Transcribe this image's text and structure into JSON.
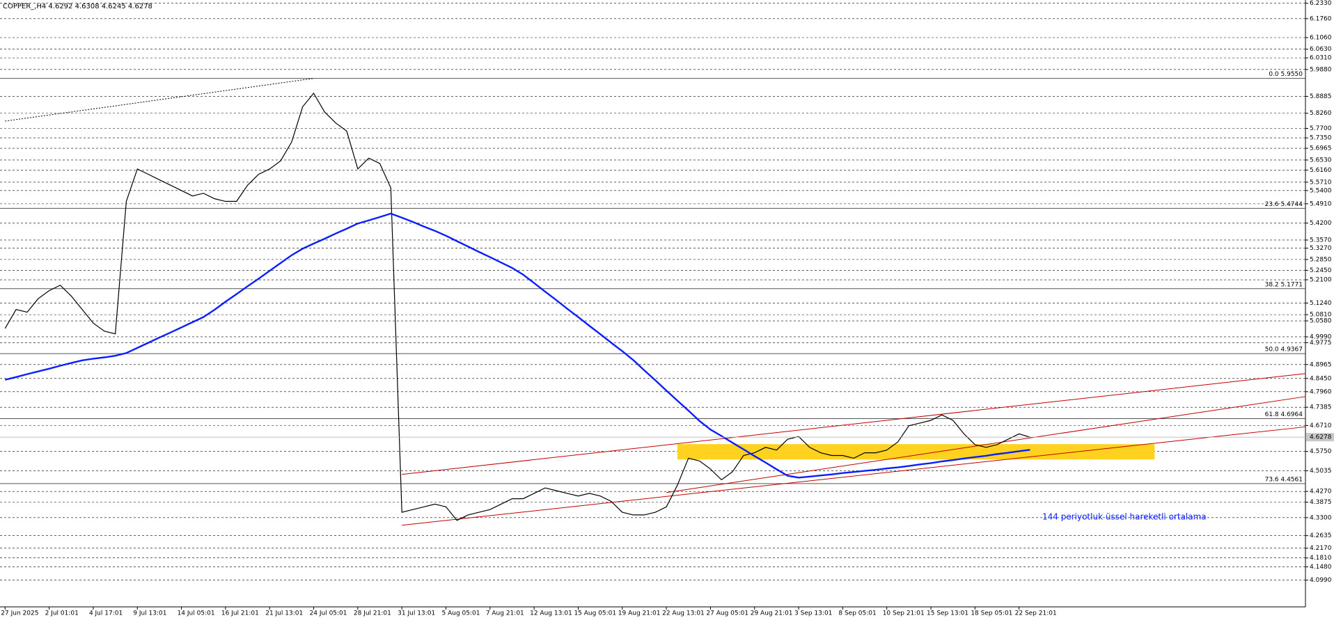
{
  "chart_data": {
    "type": "line",
    "title": "COPPER_,H4  4.6292 4.6308 4.6245 4.6278",
    "categories": [
      "27 Jun 2025",
      null,
      null,
      null,
      "2 Jul 01:01",
      null,
      null,
      null,
      "4 Jul 17:01",
      null,
      null,
      null,
      "9 Jul 13:01",
      null,
      null,
      null,
      "14 Jul 05:01",
      null,
      null,
      null,
      "16 Jul 21:01",
      null,
      null,
      null,
      "21 Jul 13:01",
      null,
      null,
      null,
      "24 Jul 05:01",
      null,
      null,
      null,
      "28 Jul 21:01",
      null,
      null,
      null,
      "31 Jul 13:01",
      null,
      null,
      null,
      "5 Aug 05:01",
      null,
      null,
      null,
      "7 Aug 21:01",
      null,
      null,
      null,
      "12 Aug 13:01",
      null,
      null,
      null,
      "15 Aug 05:01",
      null,
      null,
      null,
      "19 Aug 21:01",
      null,
      null,
      null,
      "22 Aug 13:01",
      null,
      null,
      null,
      "27 Aug 05:01",
      null,
      null,
      null,
      "29 Aug 21:01",
      null,
      null,
      null,
      "3 Sep 13:01",
      null,
      null,
      null,
      "8 Sep 05:01",
      null,
      null,
      null,
      "10 Sep 21:01",
      null,
      null,
      null,
      "15 Sep 13:01",
      null,
      null,
      null,
      "18 Sep 05:01",
      null,
      null,
      null,
      "22 Sep 21:01",
      null
    ],
    "series": [
      {
        "color": "#000000",
        "values": [
          5.03,
          5.1,
          5.09,
          5.14,
          5.17,
          5.19,
          5.15,
          5.1,
          5.05,
          5.02,
          5.01,
          5.5,
          5.62,
          5.6,
          5.58,
          5.56,
          5.54,
          5.52,
          5.53,
          5.51,
          5.5,
          5.5,
          5.56,
          5.6,
          5.62,
          5.65,
          5.72,
          5.85,
          5.9,
          5.83,
          5.79,
          5.76,
          5.62,
          5.66,
          5.64,
          5.55,
          4.35,
          4.36,
          4.37,
          4.38,
          4.37,
          4.32,
          4.34,
          4.35,
          4.36,
          4.38,
          4.4,
          4.4,
          4.42,
          4.44,
          4.43,
          4.42,
          4.41,
          4.42,
          4.41,
          4.39,
          4.35,
          4.34,
          4.34,
          4.35,
          4.37,
          4.45,
          4.55,
          4.54,
          4.51,
          4.47,
          4.5,
          4.56,
          4.57,
          4.59,
          4.58,
          4.62,
          4.63,
          4.59,
          4.57,
          4.56,
          4.56,
          4.55,
          4.57,
          4.57,
          4.58,
          4.61,
          4.67,
          4.68,
          4.69,
          4.71,
          4.69,
          4.64,
          4.6,
          4.59,
          4.6,
          4.62,
          4.64,
          4.6278
        ]
      },
      {
        "name": "144 periyotluk üssel hareketli ortalama",
        "color": "#0a1eff",
        "values": [
          4.84,
          4.85,
          4.861,
          4.871,
          4.881,
          4.892,
          4.902,
          4.912,
          4.918,
          4.923,
          4.929,
          4.939,
          4.958,
          4.977,
          4.996,
          5.015,
          5.034,
          5.053,
          5.072,
          5.099,
          5.129,
          5.157,
          5.186,
          5.214,
          5.243,
          5.272,
          5.301,
          5.325,
          5.344,
          5.362,
          5.381,
          5.399,
          5.418,
          5.43,
          5.442,
          5.455,
          5.44,
          5.424,
          5.407,
          5.391,
          5.373,
          5.353,
          5.333,
          5.313,
          5.294,
          5.274,
          5.254,
          5.229,
          5.198,
          5.166,
          5.135,
          5.103,
          5.072,
          5.04,
          5.009,
          4.977,
          4.946,
          4.913,
          4.875,
          4.838,
          4.8,
          4.763,
          4.726,
          4.688,
          4.656,
          4.632,
          4.607,
          4.583,
          4.558,
          4.534,
          4.509,
          4.485,
          4.478,
          4.482,
          4.486,
          4.49,
          4.495,
          4.499,
          4.503,
          4.507,
          4.512,
          4.516,
          4.521,
          4.527,
          4.532,
          4.538,
          4.543,
          4.549,
          4.554,
          4.559,
          4.565,
          4.57,
          4.576,
          4.581
        ]
      }
    ],
    "ylim": [
      4.0,
      6.245
    ],
    "yticks": [
      {
        "value": 6.233,
        "label": "6.2330"
      },
      {
        "value": 6.176,
        "label": "6.1760"
      },
      {
        "value": 6.106,
        "label": "6.1060"
      },
      {
        "value": 6.063,
        "label": "6.0630"
      },
      {
        "value": 6.031,
        "label": "6.0310"
      },
      {
        "value": 5.988,
        "label": "5.9880"
      },
      {
        "value": 5.8885,
        "label": "5.8885"
      },
      {
        "value": 5.826,
        "label": "5.8260"
      },
      {
        "value": 5.77,
        "label": "5.7700"
      },
      {
        "value": 5.735,
        "label": "5.7350"
      },
      {
        "value": 5.6965,
        "label": "5.6965"
      },
      {
        "value": 5.653,
        "label": "5.6530"
      },
      {
        "value": 5.616,
        "label": "5.6160"
      },
      {
        "value": 5.571,
        "label": "5.5710"
      },
      {
        "value": 5.54,
        "label": "5.5400"
      },
      {
        "value": 5.491,
        "label": "5.4910"
      },
      {
        "value": 5.42,
        "label": "5.4200"
      },
      {
        "value": 5.357,
        "label": "5.3570"
      },
      {
        "value": 5.327,
        "label": "5.3270"
      },
      {
        "value": 5.285,
        "label": "5.2850"
      },
      {
        "value": 5.245,
        "label": "5.2450"
      },
      {
        "value": 5.21,
        "label": "5.2100"
      },
      {
        "value": 5.124,
        "label": "5.1240"
      },
      {
        "value": 5.081,
        "label": "5.0810"
      },
      {
        "value": 5.058,
        "label": "5.0580"
      },
      {
        "value": 4.999,
        "label": "4.9990"
      },
      {
        "value": 4.9775,
        "label": "4.9775"
      },
      {
        "value": 4.8965,
        "label": "4.8965"
      },
      {
        "value": 4.845,
        "label": "4.8450"
      },
      {
        "value": 4.796,
        "label": "4.7960"
      },
      {
        "value": 4.7385,
        "label": "4.7385"
      },
      {
        "value": 4.671,
        "label": "4.6710"
      },
      {
        "value": 4.575,
        "label": "4.5750"
      },
      {
        "value": 4.5035,
        "label": "4.5035"
      },
      {
        "value": 4.427,
        "label": "4.4270"
      },
      {
        "value": 4.3875,
        "label": "4.3875"
      },
      {
        "value": 4.33,
        "label": "4.3300"
      },
      {
        "value": 4.2635,
        "label": "4.2635"
      },
      {
        "value": 4.217,
        "label": "4.2170"
      },
      {
        "value": 4.181,
        "label": "4.1810"
      },
      {
        "value": 4.148,
        "label": "4.1480"
      },
      {
        "value": 4.099,
        "label": "4.0990"
      }
    ],
    "grid": true,
    "last_price": {
      "value": 4.6278,
      "label": "4.6278"
    },
    "fib_levels": [
      {
        "value": 5.955,
        "label": "0.0 5.9550"
      },
      {
        "value": 5.4744,
        "label": "23.6 5.4744"
      },
      {
        "value": 5.1771,
        "label": "38.2 5.1771"
      },
      {
        "value": 4.9367,
        "label": "50.0 4.9367"
      },
      {
        "value": 4.6964,
        "label": "61.8 4.6964"
      },
      {
        "value": 4.4561,
        "label": "73.6 4.4561"
      }
    ],
    "trend_lines": [
      {
        "x": [
          36,
          118
        ],
        "values": [
          4.49,
          4.863
        ],
        "color": "#c00000"
      },
      {
        "x": [
          36,
          118
        ],
        "values": [
          4.302,
          4.666
        ],
        "color": "#c00000"
      },
      {
        "x": [
          60,
          118
        ],
        "values": [
          4.423,
          4.778
        ],
        "color": "#c00000"
      },
      {
        "x": [
          0,
          28
        ],
        "values": [
          5.797,
          5.955
        ],
        "color": "#000000",
        "dash": "2 2"
      }
    ],
    "zone": {
      "x": [
        61,
        104.3
      ],
      "values": [
        4.545,
        4.602
      ],
      "color": "#ffd21f"
    }
  }
}
